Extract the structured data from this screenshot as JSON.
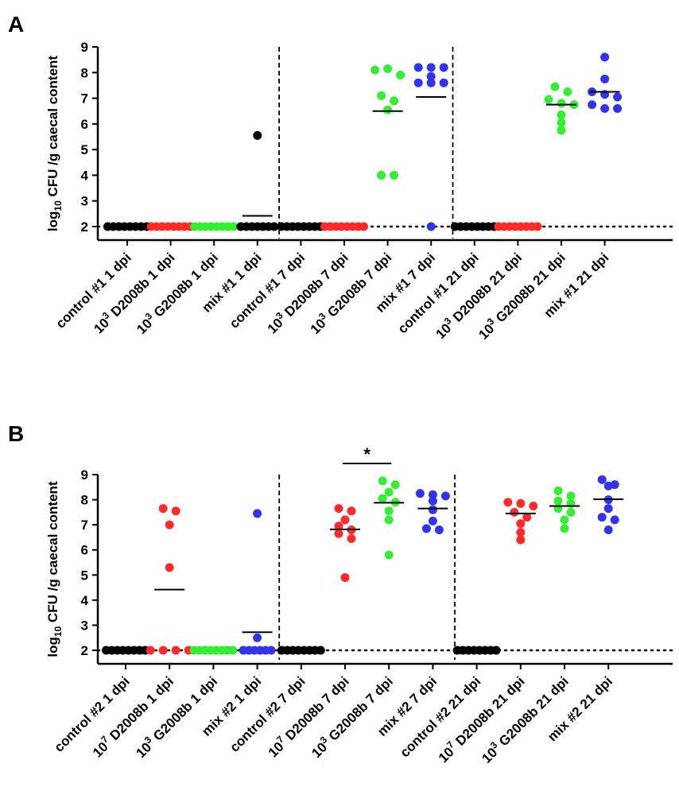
{
  "colors": {
    "black": "#000000",
    "red": "#ff2a2a",
    "green": "#33ee33",
    "blue": "#3333ee"
  },
  "chart_data": [
    {
      "type": "scatter",
      "panel": "A",
      "ylabel_base": "log",
      "ylabel_sub": "10",
      "ylabel_rest": " CFU /g caecal content",
      "ylim": [
        1.5,
        9
      ],
      "yticks": [
        "2",
        "3",
        "4",
        "5",
        "6",
        "7",
        "8",
        "9"
      ],
      "detection_limit": 2,
      "group_separators_after": [
        4,
        8
      ],
      "categories": [
        {
          "sup": "",
          "label": "control #1 1 dpi",
          "color": "black",
          "values": [
            2,
            2,
            2,
            2,
            2,
            2,
            2,
            2
          ],
          "mean": null
        },
        {
          "sup": "3",
          "label": " D2008b 1 dpi",
          "prefix": "10",
          "color": "red",
          "values": [
            2,
            2,
            2,
            2,
            2,
            2,
            2,
            2
          ],
          "mean": null
        },
        {
          "sup": "3",
          "label": " G2008b 1 dpi",
          "prefix": "10",
          "color": "green",
          "values": [
            2,
            2,
            2,
            2,
            2,
            2,
            2,
            2
          ],
          "mean": null
        },
        {
          "sup": "",
          "label": "mix #1 1 dpi",
          "color": "black",
          "values": [
            2,
            2,
            2,
            2,
            2,
            2,
            2,
            5.55
          ],
          "mean": 2.42
        },
        {
          "sup": "",
          "label": "control #1 7 dpi",
          "color": "black",
          "values": [
            2,
            2,
            2,
            2,
            2,
            2,
            2,
            2
          ],
          "mean": null
        },
        {
          "sup": "3",
          "label": " D2008b 7 dpi",
          "prefix": "10",
          "color": "red",
          "values": [
            2,
            2,
            2,
            2,
            2,
            2,
            2,
            2
          ],
          "mean": null
        },
        {
          "sup": "3",
          "label": " G2008b 7 dpi",
          "prefix": "10",
          "color": "green",
          "values": [
            8.1,
            8.15,
            7.9,
            7.1,
            6.9,
            6.55,
            4.0,
            4.0
          ],
          "mean": 6.5
        },
        {
          "sup": "",
          "label": "mix #1 7 dpi",
          "color": "blue",
          "values": [
            8.2,
            8.2,
            8.2,
            7.85,
            7.6,
            7.6,
            7.6,
            2.0
          ],
          "mean": 7.05
        },
        {
          "sup": "",
          "label": "control #1 21 dpi",
          "color": "black",
          "values": [
            2,
            2,
            2,
            2,
            2,
            2,
            2,
            2
          ],
          "mean": null
        },
        {
          "sup": "3",
          "label": " D2008b 21 dpi",
          "prefix": "10",
          "color": "red",
          "values": [
            2,
            2,
            2,
            2,
            2,
            2,
            2,
            2
          ],
          "mean": null
        },
        {
          "sup": "3",
          "label": " G2008b 21 dpi",
          "prefix": "10",
          "color": "green",
          "values": [
            7.45,
            7.25,
            6.95,
            6.8,
            6.75,
            6.35,
            6.05,
            5.75
          ],
          "mean": 6.75
        },
        {
          "sup": "",
          "label": "mix #1 21 dpi",
          "color": "blue",
          "values": [
            8.6,
            7.75,
            7.25,
            7.15,
            7.05,
            6.75,
            6.6,
            6.6
          ],
          "mean": 7.25
        }
      ]
    },
    {
      "type": "scatter",
      "panel": "B",
      "ylabel_base": "log",
      "ylabel_sub": "10",
      "ylabel_rest": " CFU /g caecal content",
      "ylim": [
        1.5,
        9
      ],
      "yticks": [
        "2",
        "3",
        "4",
        "5",
        "6",
        "7",
        "8",
        "9"
      ],
      "detection_limit": 2,
      "group_separators_after": [
        4,
        8
      ],
      "significance": {
        "label": "*",
        "between": [
          5,
          6
        ]
      },
      "categories": [
        {
          "sup": "",
          "label": "control #2 1 dpi",
          "color": "black",
          "values": [
            2,
            2,
            2,
            2,
            2,
            2,
            2,
            2
          ],
          "mean": null
        },
        {
          "sup": "7",
          "label": " D2008b 1 dpi",
          "prefix": "10",
          "color": "red",
          "values": [
            7.65,
            7.55,
            7.0,
            5.3,
            2,
            2,
            2,
            2
          ],
          "mean": 4.42
        },
        {
          "sup": "3",
          "label": " G2008b 1 dpi",
          "prefix": "10",
          "color": "green",
          "values": [
            2,
            2,
            2,
            2,
            2,
            2,
            2,
            2
          ],
          "mean": null
        },
        {
          "sup": "",
          "label": "mix #2 1 dpi",
          "color": "blue",
          "values": [
            7.45,
            2.5,
            2,
            2,
            2,
            2,
            2,
            2
          ],
          "mean": 2.72
        },
        {
          "sup": "",
          "label": "control #2 7 dpi",
          "color": "black",
          "values": [
            2,
            2,
            2,
            2,
            2,
            2,
            2,
            2
          ],
          "mean": null
        },
        {
          "sup": "7",
          "label": " D2008b 7 dpi",
          "prefix": "10",
          "color": "red",
          "values": [
            7.65,
            7.55,
            7.2,
            6.95,
            6.65,
            6.45,
            4.9,
            6.8
          ],
          "mean": 6.82
        },
        {
          "sup": "3",
          "label": " G2008b 7 dpi",
          "prefix": "10",
          "color": "green",
          "values": [
            8.75,
            8.6,
            8.3,
            8.05,
            7.9,
            7.55,
            7.2,
            5.8
          ],
          "mean": 7.88
        },
        {
          "sup": "",
          "label": "mix #2 7 dpi",
          "color": "blue",
          "values": [
            8.25,
            8.2,
            8.15,
            7.95,
            7.6,
            7.15,
            6.85,
            6.8
          ],
          "mean": 7.65
        },
        {
          "sup": "",
          "label": "control #2 21 dpi",
          "color": "black",
          "values": [
            2,
            2,
            2,
            2,
            2,
            2,
            2,
            2
          ],
          "mean": null
        },
        {
          "sup": "7",
          "label": " D2008b 21 dpi",
          "prefix": "10",
          "color": "red",
          "values": [
            7.9,
            7.85,
            7.75,
            7.5,
            7.3,
            7.05,
            6.7,
            6.4
          ],
          "mean": 7.45
        },
        {
          "sup": "3",
          "label": " G2008b 21 dpi",
          "prefix": "10",
          "color": "green",
          "values": [
            8.35,
            8.15,
            7.95,
            7.85,
            7.65,
            7.5,
            7.2,
            6.85
          ],
          "mean": 7.75
        },
        {
          "sup": "",
          "label": "mix #2 21 dpi",
          "color": "blue",
          "values": [
            8.8,
            8.6,
            8.55,
            8.0,
            7.65,
            7.3,
            7.2,
            6.8
          ],
          "mean": 8.02
        }
      ]
    }
  ]
}
